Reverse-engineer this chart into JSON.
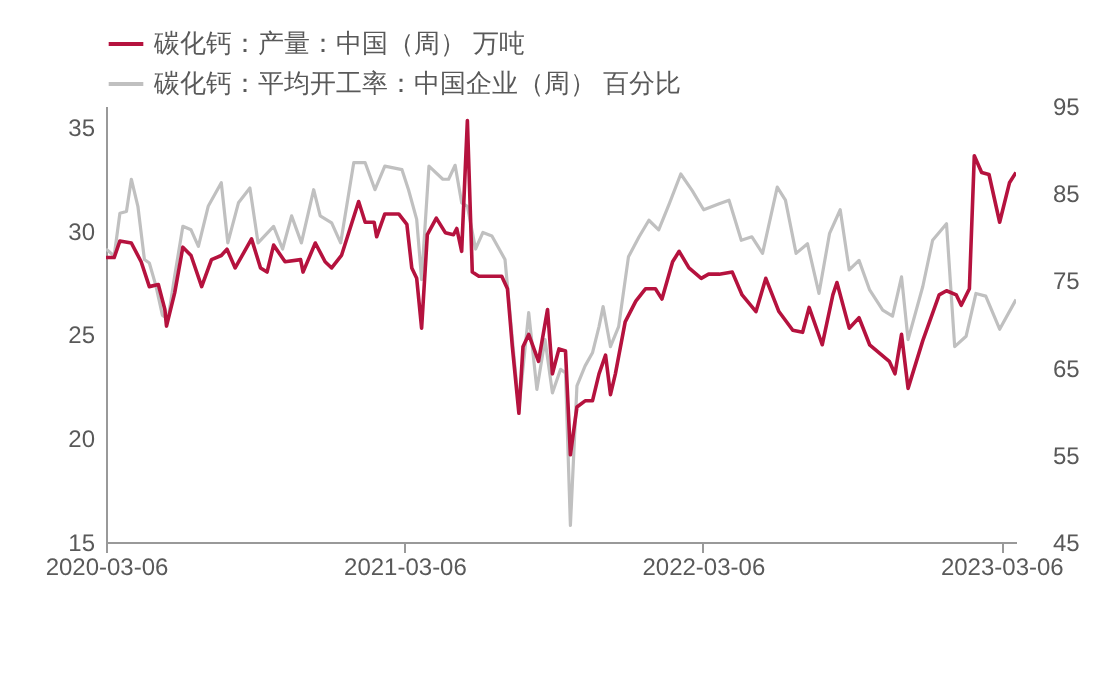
{
  "chart_data": {
    "type": "line",
    "xlim": [
      "2020-03-06",
      "2023-03-24"
    ],
    "xticks": [
      "2020-03-06",
      "2021-03-06",
      "2022-03-06",
      "2023-03-06"
    ],
    "ylim": [
      15,
      36
    ],
    "yticks": [
      15,
      20,
      25,
      30,
      35
    ],
    "y2lim": [
      45,
      95
    ],
    "y2ticks": [
      45,
      55,
      65,
      75,
      85,
      95
    ],
    "grid": false,
    "legend": "top",
    "series": [
      {
        "name": "碳化钙：产量：中国（周） 万吨",
        "color": "#b5123e",
        "x": [
          "2020-03-06",
          "2020-03-16",
          "2020-03-23",
          "2020-04-06",
          "2020-04-18",
          "2020-04-28",
          "2020-05-09",
          "2020-05-17",
          "2020-05-19",
          "2020-05-29",
          "2020-06-08",
          "2020-06-18",
          "2020-07-01",
          "2020-07-13",
          "2020-07-25",
          "2020-08-01",
          "2020-08-11",
          "2020-08-31",
          "2020-09-11",
          "2020-09-19",
          "2020-09-27",
          "2020-10-11",
          "2020-10-30",
          "2020-11-02",
          "2020-11-17",
          "2020-11-29",
          "2020-12-07",
          "2020-12-19",
          "2021-01-09",
          "2021-01-17",
          "2021-01-28",
          "2021-01-31",
          "2021-02-10",
          "2021-02-27",
          "2021-03-09",
          "2021-03-15",
          "2021-03-21",
          "2021-03-27",
          "2021-04-03",
          "2021-04-14",
          "2021-04-25",
          "2021-05-05",
          "2021-05-09",
          "2021-05-15",
          "2021-05-22",
          "2021-05-28",
          "2021-06-05",
          "2021-07-03",
          "2021-07-10",
          "2021-07-16",
          "2021-07-24",
          "2021-07-29",
          "2021-08-05",
          "2021-08-17",
          "2021-08-28",
          "2021-09-03",
          "2021-09-11",
          "2021-09-19",
          "2021-09-25",
          "2021-10-03",
          "2021-10-13",
          "2021-10-22",
          "2021-10-30",
          "2021-11-07",
          "2021-11-13",
          "2021-11-19",
          "2021-12-01",
          "2021-12-14",
          "2021-12-26",
          "2022-01-07",
          "2022-01-15",
          "2022-01-28",
          "2022-02-05",
          "2022-02-17",
          "2022-03-04",
          "2022-03-13",
          "2022-03-26",
          "2022-04-11",
          "2022-04-23",
          "2022-05-10",
          "2022-05-22",
          "2022-06-07",
          "2022-06-24",
          "2022-07-06",
          "2022-07-14",
          "2022-07-30",
          "2022-08-12",
          "2022-08-17",
          "2022-09-01",
          "2022-09-13",
          "2022-09-26",
          "2022-10-20",
          "2022-10-27",
          "2022-11-04",
          "2022-11-12",
          "2022-11-30",
          "2022-12-20",
          "2022-12-29",
          "2023-01-10",
          "2023-01-16",
          "2023-01-26",
          "2023-02-01",
          "2023-02-10",
          "2023-02-19",
          "2023-03-04",
          "2023-03-16",
          "2023-03-24"
        ],
        "values": [
          28.7,
          28.7,
          29.5,
          29.4,
          28.5,
          27.3,
          27.4,
          26.2,
          25.4,
          27.0,
          29.2,
          28.8,
          27.3,
          28.6,
          28.8,
          29.1,
          28.2,
          29.6,
          28.2,
          28.0,
          29.3,
          28.5,
          28.6,
          28.0,
          29.4,
          28.5,
          28.2,
          28.8,
          31.4,
          30.4,
          30.4,
          29.7,
          30.8,
          30.8,
          30.3,
          28.2,
          27.7,
          25.3,
          29.8,
          30.6,
          29.9,
          29.8,
          30.1,
          29.0,
          35.3,
          28.0,
          27.8,
          27.8,
          27.2,
          24.4,
          21.2,
          24.4,
          25.0,
          23.7,
          26.2,
          23.1,
          24.3,
          24.2,
          19.2,
          21.5,
          21.8,
          21.8,
          23.1,
          24.0,
          22.1,
          23.1,
          25.6,
          26.6,
          27.2,
          27.2,
          26.7,
          28.5,
          29.0,
          28.2,
          27.7,
          27.9,
          27.9,
          28.0,
          26.9,
          26.1,
          27.7,
          26.1,
          25.2,
          25.1,
          26.3,
          24.5,
          26.9,
          27.5,
          25.3,
          25.8,
          24.5,
          23.7,
          23.1,
          25.0,
          22.4,
          24.7,
          26.9,
          27.1,
          26.9,
          26.4,
          27.2,
          33.6,
          32.8,
          32.7,
          30.4,
          32.3,
          32.8
        ]
      },
      {
        "name": "碳化钙：平均开工率：中国企业（周） 百分比",
        "color": "#c0c0c0",
        "axis": "y2",
        "x": [
          "2020-03-06",
          "2020-03-16",
          "2020-03-23",
          "2020-03-31",
          "2020-04-06",
          "2020-04-14",
          "2020-04-22",
          "2020-04-28",
          "2020-05-06",
          "2020-05-14",
          "2020-05-21",
          "2020-05-29",
          "2020-06-08",
          "2020-06-18",
          "2020-06-27",
          "2020-07-09",
          "2020-07-25",
          "2020-08-02",
          "2020-08-15",
          "2020-08-29",
          "2020-09-08",
          "2020-09-27",
          "2020-10-08",
          "2020-10-19",
          "2020-10-31",
          "2020-11-15",
          "2020-11-23",
          "2020-12-07",
          "2020-12-18",
          "2021-01-03",
          "2021-01-17",
          "2021-01-29",
          "2021-02-10",
          "2021-03-03",
          "2021-03-11",
          "2021-03-21",
          "2021-03-27",
          "2021-04-05",
          "2021-04-22",
          "2021-04-29",
          "2021-05-07",
          "2021-05-15",
          "2021-05-22",
          "2021-06-01",
          "2021-06-10",
          "2021-06-21",
          "2021-07-07",
          "2021-07-16",
          "2021-07-24",
          "2021-08-05",
          "2021-08-15",
          "2021-08-25",
          "2021-09-03",
          "2021-09-13",
          "2021-09-19",
          "2021-09-25",
          "2021-10-03",
          "2021-10-13",
          "2021-10-22",
          "2021-10-30",
          "2021-11-04",
          "2021-11-13",
          "2021-11-23",
          "2021-12-05",
          "2021-12-18",
          "2021-12-30",
          "2022-01-11",
          "2022-01-24",
          "2022-02-07",
          "2022-02-21",
          "2022-03-07",
          "2022-03-26",
          "2022-04-07",
          "2022-04-22",
          "2022-05-05",
          "2022-05-18",
          "2022-06-05",
          "2022-06-15",
          "2022-06-28",
          "2022-07-12",
          "2022-07-26",
          "2022-08-08",
          "2022-08-21",
          "2022-09-01",
          "2022-09-13",
          "2022-09-26",
          "2022-10-12",
          "2022-10-24",
          "2022-11-04",
          "2022-11-12",
          "2022-11-30",
          "2022-12-12",
          "2022-12-29",
          "2023-01-08",
          "2023-01-22",
          "2023-02-03",
          "2023-02-15",
          "2023-03-04",
          "2023-03-24"
        ],
        "values": [
          78.6,
          77.8,
          82.7,
          82.9,
          86.6,
          83.5,
          77.4,
          77.0,
          74.4,
          71.0,
          70.6,
          75.5,
          81.2,
          80.8,
          78.9,
          83.5,
          86.2,
          79.3,
          83.9,
          85.6,
          79.3,
          81.2,
          78.6,
          82.4,
          79.3,
          85.4,
          82.4,
          81.6,
          79.3,
          88.5,
          88.5,
          85.4,
          88.1,
          87.7,
          85.4,
          82.0,
          75.1,
          88.1,
          86.6,
          86.6,
          88.2,
          83.9,
          83.5,
          78.6,
          80.5,
          80.1,
          77.4,
          68.3,
          60.3,
          71.3,
          62.5,
          68.2,
          62.1,
          64.8,
          64.4,
          46.9,
          62.9,
          65.2,
          66.7,
          69.7,
          72.0,
          67.4,
          69.7,
          77.7,
          80.0,
          81.9,
          80.8,
          83.8,
          87.2,
          85.3,
          83.1,
          83.8,
          84.2,
          79.6,
          80.0,
          78.1,
          85.7,
          84.2,
          78.1,
          79.2,
          73.5,
          80.4,
          83.1,
          76.2,
          77.3,
          73.9,
          71.6,
          70.9,
          75.4,
          68.2,
          74.3,
          79.6,
          81.5,
          67.4,
          68.6,
          73.5,
          73.2,
          69.4,
          72.8
        ]
      }
    ]
  }
}
